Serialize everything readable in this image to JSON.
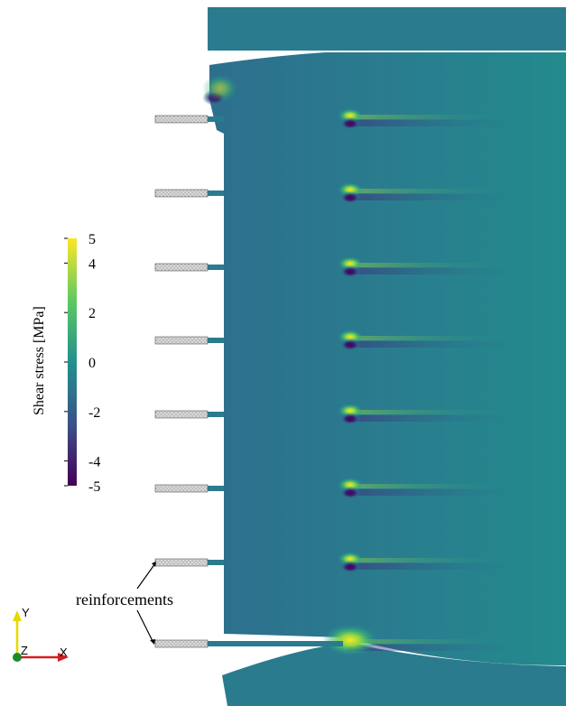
{
  "colorbar": {
    "title": "Shear stress [MPa]",
    "ticks": [
      "5",
      "4",
      "2",
      "0",
      "-2",
      "-4",
      "-5"
    ],
    "tick_values": [
      5,
      4,
      2,
      0,
      -2,
      -4,
      -5
    ],
    "range": [
      -5,
      5
    ],
    "colormap": "viridis",
    "colors": [
      "#440154",
      "#3b528b",
      "#21918c",
      "#5ec962",
      "#fde725"
    ]
  },
  "annotation": {
    "text": "reinforcements"
  },
  "axes_triad": {
    "y_label": "Y",
    "z_label": "Z",
    "x_label": "X"
  },
  "reinforcement_count": 8,
  "colors": {
    "background_field": "#2a7c8e",
    "field_dark": "#2f6b8e",
    "high_stress": "#fde725",
    "low_stress": "#440154",
    "reinforcement_fill": "#d9d9d9"
  }
}
